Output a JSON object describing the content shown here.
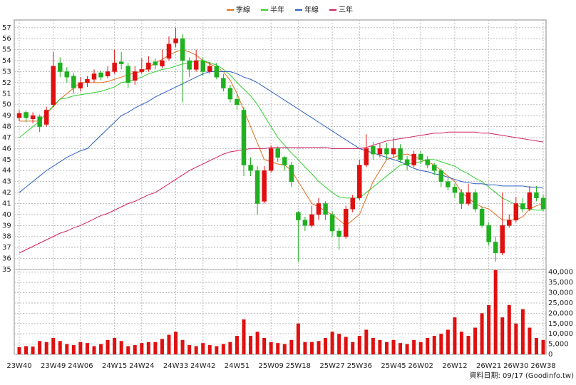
{
  "chart_data": {
    "type": "candlestick",
    "categories": [
      "23W40",
      null,
      null,
      null,
      null,
      "23W49",
      null,
      null,
      null,
      "24W06",
      null,
      null,
      null,
      null,
      "24W15",
      null,
      null,
      null,
      "24W24",
      null,
      null,
      null,
      null,
      "24W33",
      null,
      null,
      null,
      "24W42",
      null,
      null,
      null,
      null,
      "24W51",
      null,
      null,
      null,
      null,
      "25W09",
      null,
      null,
      null,
      "25W18",
      null,
      null,
      null,
      null,
      "25W27",
      null,
      null,
      null,
      "25W36",
      null,
      null,
      null,
      null,
      "25W45",
      null,
      null,
      null,
      "26W02",
      null,
      null,
      null,
      null,
      "26W12",
      null,
      null,
      null,
      null,
      "26W21",
      null,
      null,
      null,
      "26W30",
      null,
      null,
      null,
      "26W38"
    ],
    "open": [
      48.8,
      49.3,
      48.7,
      48.9,
      48.2,
      50,
      53.8,
      53,
      52.6,
      51.5,
      52,
      52.3,
      52.9,
      52.6,
      53,
      53.9,
      53.5,
      52.2,
      53,
      53.2,
      53.9,
      53.5,
      54.2,
      55.6,
      56,
      54,
      53.2,
      54,
      53,
      53.5,
      52.4,
      51.5,
      50.5,
      49.5,
      44.5,
      44,
      41.2,
      44,
      46,
      45.2,
      44.5,
      40.2,
      39.5,
      39,
      40,
      41,
      40,
      38.5,
      38,
      40.5,
      41.5,
      44.5,
      46.2,
      45.5,
      46,
      45.5,
      46,
      45,
      44.5,
      45.5,
      45,
      44.5,
      44,
      43,
      42.5,
      42,
      41,
      42,
      40.5,
      39,
      37.5,
      36.5,
      39,
      39.5,
      41,
      40.5,
      42,
      41.5
    ],
    "high": [
      49.5,
      49.5,
      49.3,
      49.1,
      49.8,
      54.8,
      54.3,
      53.4,
      52.9,
      52.5,
      52.6,
      53.2,
      53.1,
      53.5,
      55,
      54.8,
      53.8,
      53.5,
      54.2,
      54.4,
      54.2,
      55,
      56.2,
      57,
      56.4,
      54.3,
      55,
      54.3,
      53.9,
      53.8,
      52.8,
      51.8,
      51,
      49.8,
      45.2,
      44.4,
      44.4,
      46.3,
      46.2,
      45.3,
      44.8,
      40.3,
      39.8,
      40.8,
      41.5,
      41.2,
      40.3,
      38.8,
      40.8,
      41.8,
      45,
      47.3,
      46.6,
      46.5,
      46.5,
      47,
      46.4,
      45.3,
      45.8,
      45.8,
      45.3,
      44.7,
      44.2,
      43.3,
      42.8,
      42.3,
      42.8,
      42.3,
      40.7,
      39.3,
      38,
      42,
      40,
      41.6,
      41.5,
      42.6,
      42.6,
      41.8
    ],
    "low": [
      48.5,
      48.4,
      48.3,
      47.5,
      48,
      49.8,
      52.5,
      52,
      51,
      51.2,
      51.6,
      52,
      52.2,
      52.4,
      52.8,
      53.2,
      51.5,
      51.8,
      52.8,
      53,
      53.2,
      53.3,
      54,
      55.2,
      50.2,
      52.5,
      53,
      52.6,
      52.8,
      52.3,
      51.2,
      50.2,
      49.5,
      43.5,
      43.5,
      40,
      41,
      43.8,
      44.8,
      44,
      42.5,
      35.7,
      38.5,
      38.8,
      39.5,
      39.5,
      38,
      36.8,
      37.8,
      40.2,
      41.3,
      44.3,
      45,
      45.2,
      45,
      45.2,
      44.7,
      44,
      44.3,
      44.6,
      44.2,
      43.6,
      42.5,
      42.2,
      41.5,
      40.5,
      40.8,
      40.2,
      38.8,
      37.2,
      35.7,
      36.3,
      38.8,
      39.3,
      40.2,
      40.3,
      41.2,
      40.3
    ],
    "close": [
      49.2,
      48.8,
      49,
      48,
      49.5,
      53.5,
      53,
      52.5,
      51.5,
      52,
      52.3,
      52.8,
      52.5,
      53,
      53.8,
      53.7,
      52,
      53,
      53.2,
      53.8,
      53.6,
      54,
      55.5,
      56,
      54,
      53.2,
      54,
      53,
      53.5,
      52.5,
      51.5,
      50.5,
      50,
      44.5,
      44,
      41,
      44,
      46,
      45.2,
      44.5,
      43,
      39.5,
      39,
      40,
      41,
      40,
      38.5,
      38,
      40.5,
      41.5,
      44.5,
      46,
      45.5,
      46,
      45.5,
      46,
      45,
      44.5,
      45.5,
      45,
      44.5,
      44,
      43,
      42.5,
      42,
      41,
      42,
      40.5,
      39,
      37.5,
      36.5,
      39,
      39.5,
      41,
      40.5,
      42,
      41.5,
      40.5
    ],
    "up_color": "#e01010",
    "down_color": "#20b020",
    "ylim": [
      35,
      57.7
    ],
    "yticks": [
      35,
      36,
      37,
      38,
      39,
      40,
      41,
      42,
      43,
      44,
      45,
      46,
      47,
      48,
      49,
      50,
      51,
      52,
      53,
      54,
      55,
      56,
      57
    ],
    "grid": true,
    "legend": "top",
    "series": [
      {
        "name": "季線",
        "color": "#e07020",
        "values": [
          48.5,
          48.5,
          48.5,
          48.5,
          49.2,
          49.8,
          50.5,
          51,
          51.5,
          52,
          52,
          52,
          52,
          52.1,
          52.3,
          52.5,
          52.7,
          52.9,
          53,
          53.4,
          53.8,
          54.1,
          54.5,
          54.8,
          55,
          54.8,
          54.5,
          54,
          53.7,
          53.4,
          53,
          52.2,
          51,
          49.5,
          48,
          46.5,
          45,
          44.8,
          44.6,
          44.5,
          44,
          43,
          42,
          41,
          40.7,
          40.3,
          40,
          39.5,
          39,
          39.5,
          40,
          41.5,
          43,
          44,
          45,
          45.2,
          45.4,
          45.5,
          45.3,
          45,
          44.8,
          44.5,
          44,
          43.5,
          43,
          42,
          41.5,
          41,
          40.7,
          40.5,
          40,
          39.5,
          39.5,
          39.5,
          39.8,
          40.5,
          40.8,
          41
        ]
      },
      {
        "name": "半年",
        "color": "#30d030",
        "values": [
          47,
          47.5,
          48,
          48.5,
          49.2,
          49.9,
          50.5,
          50.6,
          50.8,
          50.9,
          51,
          51.1,
          51.2,
          51.4,
          51.6,
          52,
          52.1,
          52.3,
          52.5,
          52.8,
          53,
          53.2,
          53.3,
          53.5,
          53.7,
          53.8,
          54,
          54,
          53.8,
          53.6,
          53.2,
          52.7,
          52,
          51.4,
          50.8,
          50,
          49,
          48,
          47,
          46.3,
          45.6,
          45,
          44.3,
          43.7,
          43,
          42.5,
          42,
          41.6,
          41.5,
          41.5,
          41.5,
          42,
          42.5,
          43,
          43.5,
          44,
          44.5,
          44.6,
          44.7,
          44.8,
          45,
          45,
          44.8,
          44.6,
          44.4,
          44,
          43.7,
          43.3,
          43,
          42.5,
          42,
          41.5,
          41.2,
          40.9,
          40.6,
          40.5,
          40.4,
          40.4
        ]
      },
      {
        "name": "年線",
        "color": "#2f5fc0",
        "values": [
          42,
          42.5,
          43,
          43.5,
          44,
          44.4,
          44.8,
          45.2,
          45.5,
          45.8,
          46,
          46.6,
          47.2,
          47.8,
          48.4,
          49,
          49.3,
          49.7,
          50,
          50.3,
          50.7,
          51,
          51.3,
          51.6,
          51.9,
          52.2,
          52.5,
          52.8,
          53,
          53,
          53,
          53,
          52.8,
          52.5,
          52.3,
          52,
          51.6,
          51.2,
          50.8,
          50.4,
          50,
          49.6,
          49.2,
          48.8,
          48.4,
          48,
          47.6,
          47.2,
          46.8,
          46.4,
          46,
          45.8,
          45.6,
          45.4,
          45.2,
          45,
          44.8,
          44.5,
          44.2,
          44,
          43.9,
          43.7,
          43.6,
          43.4,
          43.2,
          43,
          42.9,
          42.8,
          42.8,
          42.7,
          42.7,
          42.6,
          42.6,
          42.6,
          42.6,
          42.5,
          42.5,
          42.4
        ]
      },
      {
        "name": "三年",
        "color": "#d02060",
        "values": [
          36.5,
          36.8,
          37.1,
          37.4,
          37.7,
          38,
          38.3,
          38.5,
          38.8,
          39,
          39.3,
          39.6,
          39.9,
          40.1,
          40.4,
          40.7,
          41,
          41.2,
          41.5,
          41.8,
          42,
          42.4,
          42.8,
          43.2,
          43.6,
          44,
          44.3,
          44.6,
          44.9,
          45.2,
          45.5,
          45.7,
          45.8,
          45.9,
          46,
          46,
          46,
          46.1,
          46.1,
          46.1,
          46.1,
          46.1,
          46.1,
          46.1,
          46.1,
          46.1,
          46,
          46,
          46,
          46,
          46,
          46.1,
          46.3,
          46.5,
          46.7,
          46.8,
          46.9,
          47,
          47.1,
          47.2,
          47.3,
          47.4,
          47.4,
          47.5,
          47.5,
          47.5,
          47.5,
          47.5,
          47.4,
          47.4,
          47.3,
          47.2,
          47.1,
          47,
          46.9,
          46.8,
          46.7,
          46.6
        ]
      }
    ],
    "volume": {
      "color": "#e01010",
      "values": [
        3500,
        4000,
        3800,
        6500,
        6000,
        8000,
        6500,
        5000,
        4500,
        6000,
        5500,
        4000,
        5000,
        7000,
        8000,
        6500,
        4000,
        4500,
        5500,
        6000,
        6000,
        7500,
        9500,
        11000,
        7000,
        4500,
        4000,
        5500,
        4500,
        4000,
        5000,
        6000,
        9000,
        17000,
        9000,
        11000,
        8000,
        6000,
        5500,
        5000,
        7000,
        15000,
        6000,
        6000,
        6500,
        8000,
        11000,
        10000,
        8500,
        6000,
        9000,
        12000,
        8000,
        7000,
        6000,
        7000,
        5500,
        5000,
        7000,
        6000,
        8000,
        9000,
        10000,
        12000,
        18000,
        11000,
        9000,
        13000,
        20000,
        24000,
        41000,
        18000,
        24000,
        15000,
        22000,
        13000,
        8000,
        7000
      ],
      "ylim": [
        0,
        41300
      ],
      "yticks": [
        0,
        {
          "value": 5000,
          "label": "5,000"
        },
        {
          "value": 10000,
          "label": "10,000"
        },
        {
          "value": 15000,
          "label": "15,000"
        },
        {
          "value": 20000,
          "label": "20,000"
        },
        {
          "value": 25000,
          "label": "25,000"
        },
        {
          "value": 30000,
          "label": "30,000"
        },
        {
          "value": 35000,
          "label": "35,000"
        },
        {
          "value": 40000,
          "label": "40,000"
        }
      ]
    },
    "source": "資料日期: 09/17 (Goodinfo.tw)"
  }
}
